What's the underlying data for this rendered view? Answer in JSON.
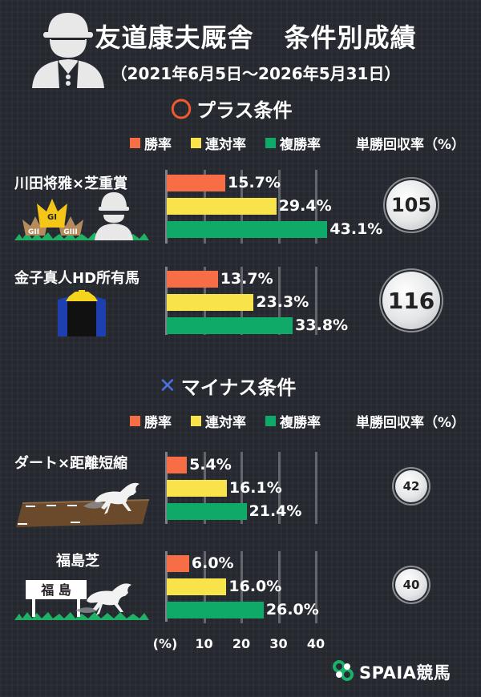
{
  "header": {
    "title_left": "友道康夫厩舎",
    "title_right": "条件別成績",
    "period": "（2021年6月5日～2026年5月31日）"
  },
  "legend": {
    "win": "勝率",
    "top2": "連対率",
    "top3": "複勝率",
    "recovery": "単勝回収率（%）"
  },
  "colors": {
    "win": "#f76d46",
    "top2": "#f8e34a",
    "top3": "#0fa968",
    "plus_symbol": "#f15a2b",
    "minus_symbol": "#4f6ee0",
    "grass": "#1fb265"
  },
  "plus_section": {
    "symbol": "〇",
    "title": "プラス条件"
  },
  "minus_section": {
    "symbol": "✕",
    "title": "マイナス条件"
  },
  "horse_icons": {
    "g1": "GI",
    "g2": "GII",
    "g3": "GIII",
    "place": "福 島"
  },
  "axis": {
    "unit": "(%)",
    "ticks": [
      "10",
      "20",
      "30",
      "40"
    ]
  },
  "brand": {
    "name": "SPAIA競馬"
  },
  "chart_data": {
    "type": "bar",
    "orientation": "horizontal",
    "xlim": [
      0,
      40
    ],
    "x_ticks": [
      10,
      20,
      30,
      40
    ],
    "x_unit": "(%)",
    "series_names": [
      "勝率",
      "連対率",
      "複勝率"
    ],
    "groups": [
      {
        "section": "plus",
        "label": "川田将雅×芝重賞",
        "win": 15.7,
        "top2": 29.4,
        "top3": 43.1,
        "recovery": 105,
        "win_label": "15.7%",
        "top2_label": "29.4%",
        "top3_label": "43.1%",
        "recovery_label": "105"
      },
      {
        "section": "plus",
        "label": "金子真人HD所有馬",
        "win": 13.7,
        "top2": 23.3,
        "top3": 33.8,
        "recovery": 116,
        "win_label": "13.7%",
        "top2_label": "23.3%",
        "top3_label": "33.8%",
        "recovery_label": "116"
      },
      {
        "section": "minus",
        "label": "ダート×距離短縮",
        "win": 5.4,
        "top2": 16.1,
        "top3": 21.4,
        "recovery": 42,
        "win_label": "5.4%",
        "top2_label": "16.1%",
        "top3_label": "21.4%",
        "recovery_label": "42"
      },
      {
        "section": "minus",
        "label": "福島芝",
        "win": 6.0,
        "top2": 16.0,
        "top3": 26.0,
        "recovery": 40,
        "win_label": "6.0%",
        "top2_label": "16.0%",
        "top3_label": "26.0%",
        "recovery_label": "40"
      }
    ]
  }
}
